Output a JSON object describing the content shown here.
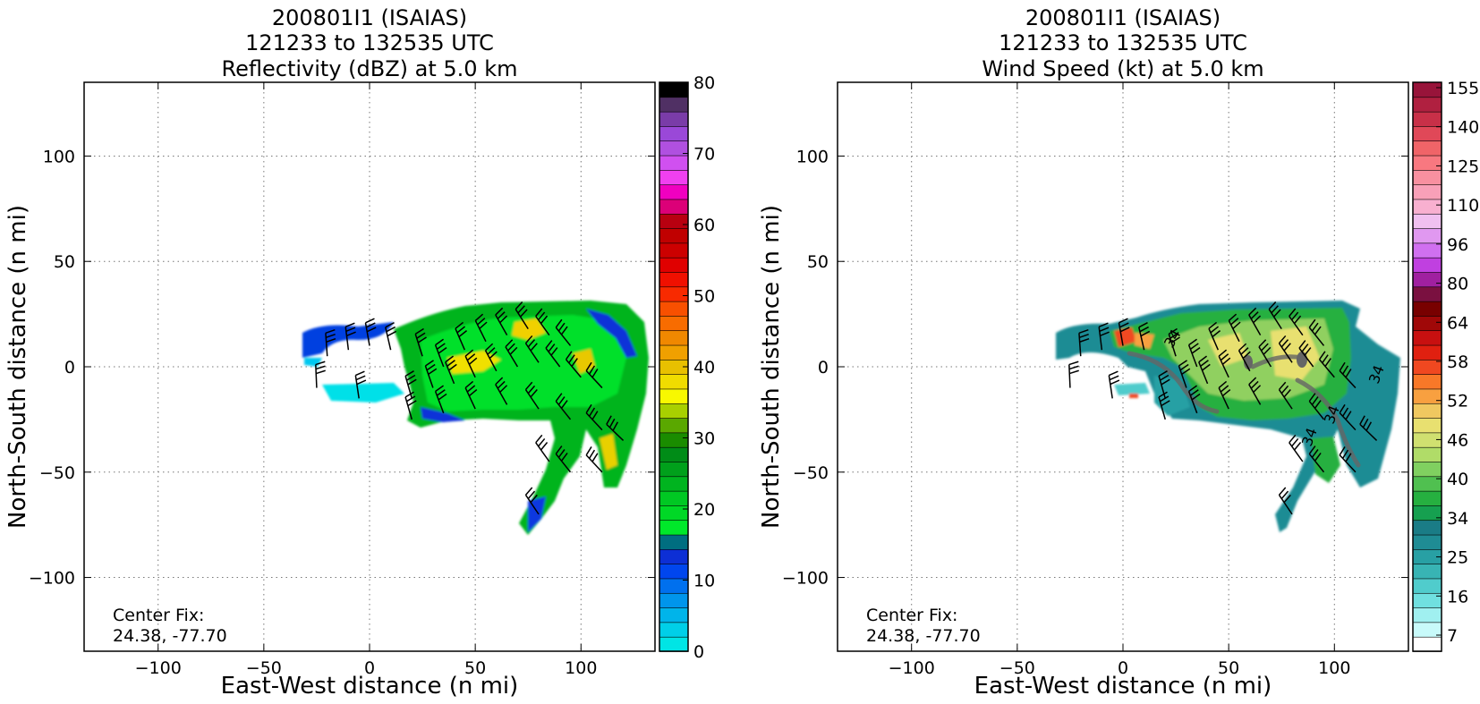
{
  "chart_data": [
    {
      "type": "heatmap",
      "title_lines": [
        "200801I1 (ISAIAS)",
        "121233 to 132535 UTC",
        "Reflectivity (dBZ) at 5.0 km"
      ],
      "xlabel": "East-West distance (n mi)",
      "ylabel": "North-South distance (n mi)",
      "xlim": [
        -135,
        135
      ],
      "ylim": [
        -135,
        135
      ],
      "xticks": [
        -100,
        -50,
        0,
        50,
        100
      ],
      "yticks": [
        -100,
        -50,
        0,
        50,
        100
      ],
      "xtick_labels": [
        "−100",
        "−50",
        "0",
        "50",
        "100"
      ],
      "ytick_labels": [
        "−100",
        "−50",
        "0",
        "50",
        "100"
      ],
      "grid": true,
      "annotation": [
        "Center Fix:",
        "24.38, -77.70"
      ],
      "colorbar": {
        "min": 0,
        "max": 80,
        "tick_values": [
          0,
          10,
          20,
          30,
          40,
          50,
          60,
          70,
          80
        ],
        "tick_labels": [
          "0",
          "10",
          "20",
          "30",
          "40",
          "50",
          "60",
          "70",
          "80"
        ],
        "colors": [
          "#00e5e5",
          "#00cfe8",
          "#00b4ea",
          "#0095ec",
          "#0070ee",
          "#0046ee",
          "#0d2fd5",
          "#006e80",
          "#00e82a",
          "#00d826",
          "#00c823",
          "#00b41f",
          "#00a01b",
          "#008c17",
          "#1a8c00",
          "#5aa800",
          "#a8d000",
          "#f8f800",
          "#f0dc00",
          "#e8c000",
          "#f0a000",
          "#f08800",
          "#f86c00",
          "#f85000",
          "#f82a00",
          "#f01000",
          "#e00000",
          "#cc0000",
          "#c00000",
          "#b80010",
          "#dc0078",
          "#f000c0",
          "#f040f0",
          "#d050f0",
          "#b050e0",
          "#9a48d8",
          "#7a3ca8",
          "#503064",
          "#000000"
        ]
      },
      "field_description": "radar reflectivity shaded field with wind barbs",
      "barbs": [
        [
          -20,
          5
        ],
        [
          -10,
          8
        ],
        [
          0,
          10
        ],
        [
          10,
          8
        ],
        [
          25,
          5
        ],
        [
          35,
          0
        ],
        [
          45,
          8
        ],
        [
          55,
          12
        ],
        [
          65,
          15
        ],
        [
          75,
          18
        ],
        [
          85,
          15
        ],
        [
          95,
          10
        ],
        [
          20,
          -15
        ],
        [
          30,
          -10
        ],
        [
          40,
          -8
        ],
        [
          50,
          -5
        ],
        [
          60,
          -2
        ],
        [
          70,
          0
        ],
        [
          80,
          2
        ],
        [
          90,
          0
        ],
        [
          100,
          -5
        ],
        [
          110,
          -10
        ],
        [
          20,
          -25
        ],
        [
          35,
          -22
        ],
        [
          50,
          -20
        ],
        [
          65,
          -18
        ],
        [
          80,
          -20
        ],
        [
          95,
          -25
        ],
        [
          110,
          -30
        ],
        [
          120,
          -35
        ],
        [
          85,
          -45
        ],
        [
          95,
          -50
        ],
        [
          110,
          -50
        ],
        [
          80,
          -70
        ],
        [
          -25,
          -10
        ],
        [
          -5,
          -15
        ]
      ]
    },
    {
      "type": "heatmap",
      "title_lines": [
        "200801I1 (ISAIAS)",
        "121233 to 132535 UTC",
        "Wind Speed (kt) at 5.0 km"
      ],
      "xlabel": "East-West distance (n mi)",
      "ylabel": "North-South distance (n mi)",
      "xlim": [
        -135,
        135
      ],
      "ylim": [
        -135,
        135
      ],
      "xticks": [
        -100,
        -50,
        0,
        50,
        100
      ],
      "yticks": [
        -100,
        -50,
        0,
        50,
        100
      ],
      "xtick_labels": [
        "−100",
        "−50",
        "0",
        "50",
        "100"
      ],
      "ytick_labels": [
        "−100",
        "−50",
        "0",
        "50",
        "100"
      ],
      "grid": true,
      "annotation": [
        "Center Fix:",
        "24.38, -77.70"
      ],
      "colorbar": {
        "tick_labels": [
          "7",
          "16",
          "25",
          "34",
          "40",
          "46",
          "52",
          "58",
          "64",
          "80",
          "96",
          "110",
          "125",
          "140",
          "155"
        ],
        "colors": [
          "#ffffff",
          "#c8fafa",
          "#a0f0f0",
          "#70e0e0",
          "#50cccc",
          "#38b4b4",
          "#28a0a4",
          "#1f8c94",
          "#1a7c86",
          "#16a050",
          "#26b040",
          "#50c050",
          "#80d060",
          "#b0dc68",
          "#d0e070",
          "#e8e070",
          "#f0c860",
          "#f8a040",
          "#f87828",
          "#f04820",
          "#e02010",
          "#c81010",
          "#a00808",
          "#780000",
          "#7a1040",
          "#a020a0",
          "#c040e0",
          "#d070f0",
          "#e098f0",
          "#f0c0f0",
          "#f8b0d0",
          "#f8a0b8",
          "#f890a0",
          "#f87880",
          "#f06468",
          "#e04858",
          "#c83048",
          "#b02040",
          "#98143a"
        ]
      },
      "field_description": "wind speed shaded field with wind barbs and 34/50 kt contours",
      "contour_label": "34"
    }
  ]
}
